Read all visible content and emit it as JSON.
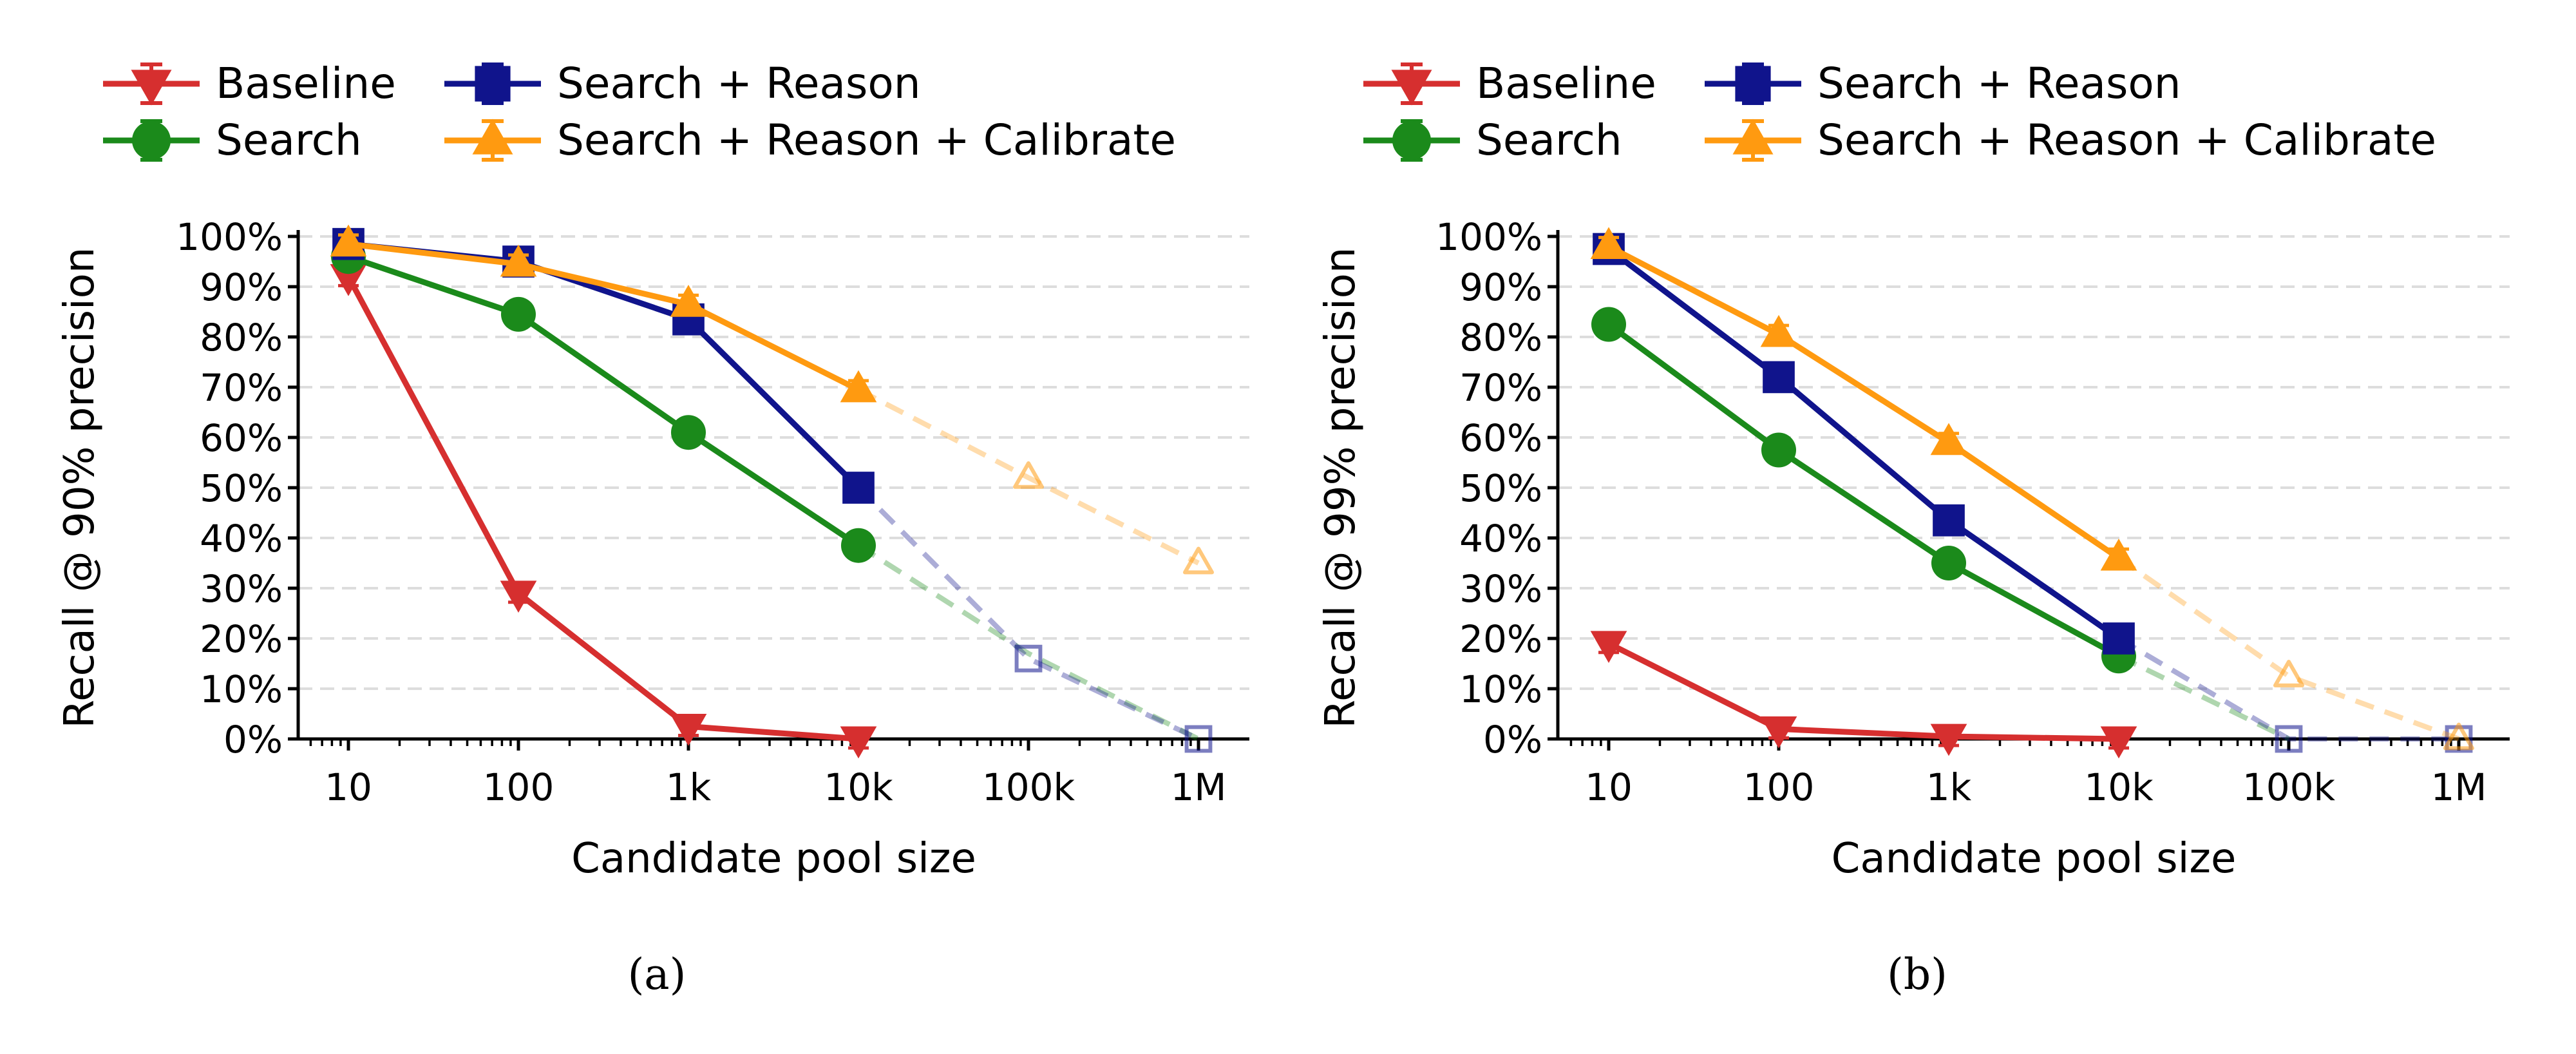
{
  "colors": {
    "baseline": "#d62f2f",
    "search": "#1b8a1b",
    "search_reason": "#10148c",
    "calibrate": "#ff9a10",
    "grid": "#dddddd"
  },
  "chart_data": [
    {
      "type": "line",
      "caption": "(a)",
      "xlabel": "Candidate pool size",
      "ylabel": "Recall @ 90% precision",
      "x": [
        10,
        100,
        1000,
        10000,
        100000,
        1000000
      ],
      "xticklabels": [
        "10",
        "100",
        "1k",
        "10k",
        "100k",
        "1M"
      ],
      "xscale": "log",
      "ylim": [
        0,
        100
      ],
      "yticklabels": [
        "0%",
        "10%",
        "20%",
        "30%",
        "40%",
        "50%",
        "60%",
        "70%",
        "80%",
        "90%",
        "100%"
      ],
      "grid": "horizontal dashed",
      "legend": "top, two columns",
      "series": [
        {
          "key": "baseline",
          "name": "Baseline",
          "marker": "triangle-down",
          "x": [
            10,
            100,
            1000,
            10000
          ],
          "values": [
            92,
            29,
            2.5,
            0
          ],
          "extrapolated_x": [],
          "extrapolated_values": []
        },
        {
          "key": "search",
          "name": "Search",
          "marker": "circle",
          "x": [
            10,
            100,
            1000,
            10000
          ],
          "values": [
            96,
            84.5,
            61,
            38.5
          ],
          "extrapolated_x": [
            10000,
            100000,
            1000000
          ],
          "extrapolated_values": [
            38.5,
            17,
            0
          ]
        },
        {
          "key": "search_reason",
          "name": "Search + Reason",
          "marker": "square",
          "x": [
            10,
            100,
            1000,
            10000
          ],
          "values": [
            98.5,
            95,
            83.5,
            50
          ],
          "extrapolated_x": [
            10000,
            100000,
            1000000
          ],
          "extrapolated_values": [
            50,
            16,
            0
          ]
        },
        {
          "key": "calibrate",
          "name": "Search + Reason + Calibrate",
          "marker": "triangle-up",
          "x": [
            10,
            100,
            1000,
            10000
          ],
          "values": [
            98.5,
            94.5,
            86.5,
            69.5
          ],
          "extrapolated_x": [
            10000,
            100000,
            1000000
          ],
          "extrapolated_values": [
            69.5,
            52,
            35
          ]
        }
      ]
    },
    {
      "type": "line",
      "caption": "(b)",
      "xlabel": "Candidate pool size",
      "ylabel": "Recall @ 99% precision",
      "x": [
        10,
        100,
        1000,
        10000,
        100000,
        1000000
      ],
      "xticklabels": [
        "10",
        "100",
        "1k",
        "10k",
        "100k",
        "1M"
      ],
      "xscale": "log",
      "ylim": [
        0,
        100
      ],
      "yticklabels": [
        "0%",
        "10%",
        "20%",
        "30%",
        "40%",
        "50%",
        "60%",
        "70%",
        "80%",
        "90%",
        "100%"
      ],
      "grid": "horizontal dashed",
      "legend": "top, two columns",
      "series": [
        {
          "key": "baseline",
          "name": "Baseline",
          "marker": "triangle-down",
          "x": [
            10,
            100,
            1000,
            10000
          ],
          "values": [
            19,
            2,
            0.5,
            0
          ],
          "extrapolated_x": [],
          "extrapolated_values": []
        },
        {
          "key": "search",
          "name": "Search",
          "marker": "circle",
          "x": [
            10,
            100,
            1000,
            10000
          ],
          "values": [
            82.5,
            57.5,
            35,
            16.5
          ],
          "extrapolated_x": [
            10000,
            100000
          ],
          "extrapolated_values": [
            16.5,
            0
          ]
        },
        {
          "key": "search_reason",
          "name": "Search + Reason",
          "marker": "square",
          "x": [
            10,
            100,
            1000,
            10000
          ],
          "values": [
            97.5,
            72,
            43.5,
            20
          ],
          "extrapolated_x": [
            10000,
            100000,
            1000000
          ],
          "extrapolated_values": [
            20,
            0,
            0
          ]
        },
        {
          "key": "calibrate",
          "name": "Search + Reason + Calibrate",
          "marker": "triangle-up",
          "x": [
            10,
            100,
            1000,
            10000
          ],
          "values": [
            98,
            80.5,
            59,
            36
          ],
          "extrapolated_x": [
            10000,
            100000,
            1000000
          ],
          "extrapolated_values": [
            36,
            12.5,
            0
          ]
        }
      ]
    }
  ]
}
